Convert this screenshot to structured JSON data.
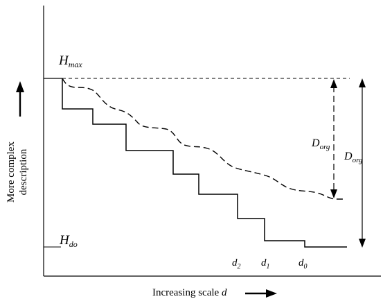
{
  "diagram": {
    "labels": {
      "h_max": {
        "main": "H",
        "sub": "max"
      },
      "h_do": {
        "main": "H",
        "sub": "do"
      },
      "d_org_inner": {
        "main": "D",
        "sub": "org"
      },
      "d_org_outer": {
        "main": "D",
        "sub": "org"
      },
      "d2": {
        "main": "d",
        "sub": "2"
      },
      "d1": {
        "main": "d",
        "sub": "1"
      },
      "d0": {
        "main": "d",
        "sub": "0"
      }
    },
    "x_axis_label": {
      "text": "Increasing scale ",
      "var": "d"
    },
    "y_axis_label": {
      "line1": "More complex",
      "line2": "description"
    },
    "colors": {
      "ink": "#000000",
      "background": "#ffffff"
    }
  }
}
